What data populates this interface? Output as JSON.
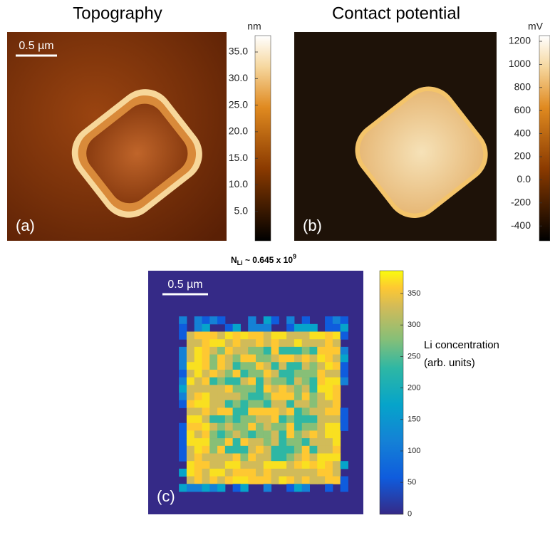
{
  "panels": [
    {
      "title": "Topography",
      "label": "(a)",
      "scale_bar": "0.5 µm",
      "colorbar": {
        "unit": "nm",
        "ticks": [
          "35.0",
          "30.0",
          "25.0",
          "20.0",
          "15.0",
          "10.0",
          "5.0"
        ]
      }
    },
    {
      "title": "Contact potential",
      "label": "(b)",
      "colorbar": {
        "unit": "mV",
        "ticks": [
          "1200",
          "1000",
          "800",
          "600",
          "400",
          "200",
          "0.0",
          "-200",
          "-400"
        ]
      }
    },
    {
      "title": {
        "base": "N",
        "subscript": "Li",
        "middle": " ~ 0.645 x 10",
        "superscript": "9"
      },
      "label": "(c)",
      "scale_bar": "0.5 µm",
      "colorbar": {
        "ticks": [
          "350",
          "300",
          "250",
          "200",
          "150",
          "100",
          "50",
          "0"
        ],
        "caption": [
          "Li concentration",
          "(arb. units)"
        ]
      }
    }
  ]
}
